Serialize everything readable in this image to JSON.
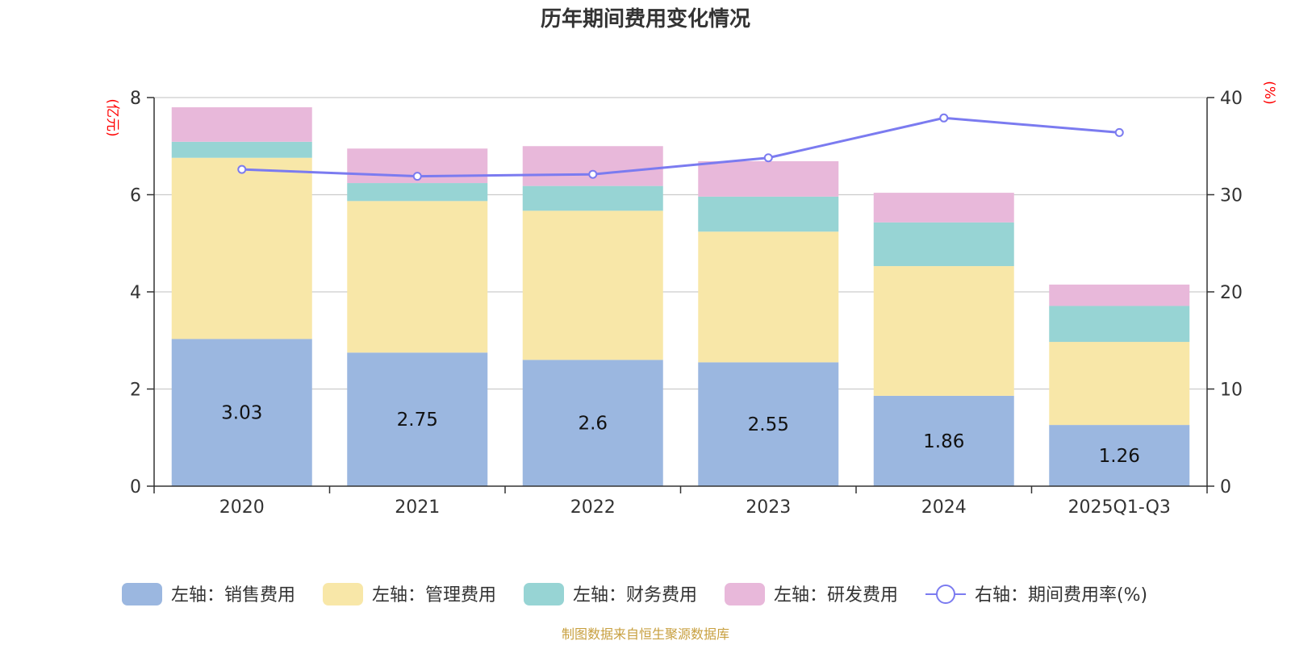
{
  "chart_data": {
    "type": "bar",
    "title": "历年期间费用变化情况",
    "categories": [
      "2020",
      "2021",
      "2022",
      "2023",
      "2024",
      "2025Q1-Q3"
    ],
    "y_left": {
      "unit": "(亿元)",
      "ticks": [
        "0",
        "2",
        "4",
        "6",
        "8"
      ],
      "range": [
        0,
        8
      ]
    },
    "y_right": {
      "unit": "(%)",
      "ticks": [
        "0",
        "10",
        "20",
        "30",
        "40"
      ],
      "range": [
        0,
        40
      ]
    },
    "series": [
      {
        "name": "左轴：销售费用",
        "type": "bar",
        "axis": "left",
        "color": "#9bb7e0",
        "values": [
          3.03,
          2.75,
          2.6,
          2.55,
          1.86,
          1.26
        ],
        "labels": [
          "3.03",
          "2.75",
          "2.6",
          "2.55",
          "1.86",
          "1.26"
        ]
      },
      {
        "name": "左轴：管理费用",
        "type": "bar",
        "axis": "left",
        "color": "#f8e7a8",
        "values": [
          3.73,
          3.12,
          3.07,
          2.69,
          2.67,
          1.71
        ]
      },
      {
        "name": "左轴：财务费用",
        "type": "bar",
        "axis": "left",
        "color": "#97d4d4",
        "values": [
          0.33,
          0.37,
          0.51,
          0.72,
          0.9,
          0.74
        ]
      },
      {
        "name": "左轴：研发费用",
        "type": "bar",
        "axis": "left",
        "color": "#e8b8da",
        "values": [
          0.71,
          0.71,
          0.82,
          0.73,
          0.61,
          0.44
        ]
      },
      {
        "name": "右轴：期间费用率(%)",
        "type": "line",
        "axis": "right",
        "color": "#7b7bf0",
        "values": [
          32.6,
          31.9,
          32.1,
          33.8,
          37.9,
          36.4
        ]
      }
    ],
    "grid": true,
    "legend": "bottom"
  },
  "source": {
    "text": "制图数据来自恒生聚源数据库",
    "color": "#c8a040"
  },
  "colors": {
    "axis": "#333333",
    "grid": "#cccccc",
    "unit": "#ff0000"
  }
}
